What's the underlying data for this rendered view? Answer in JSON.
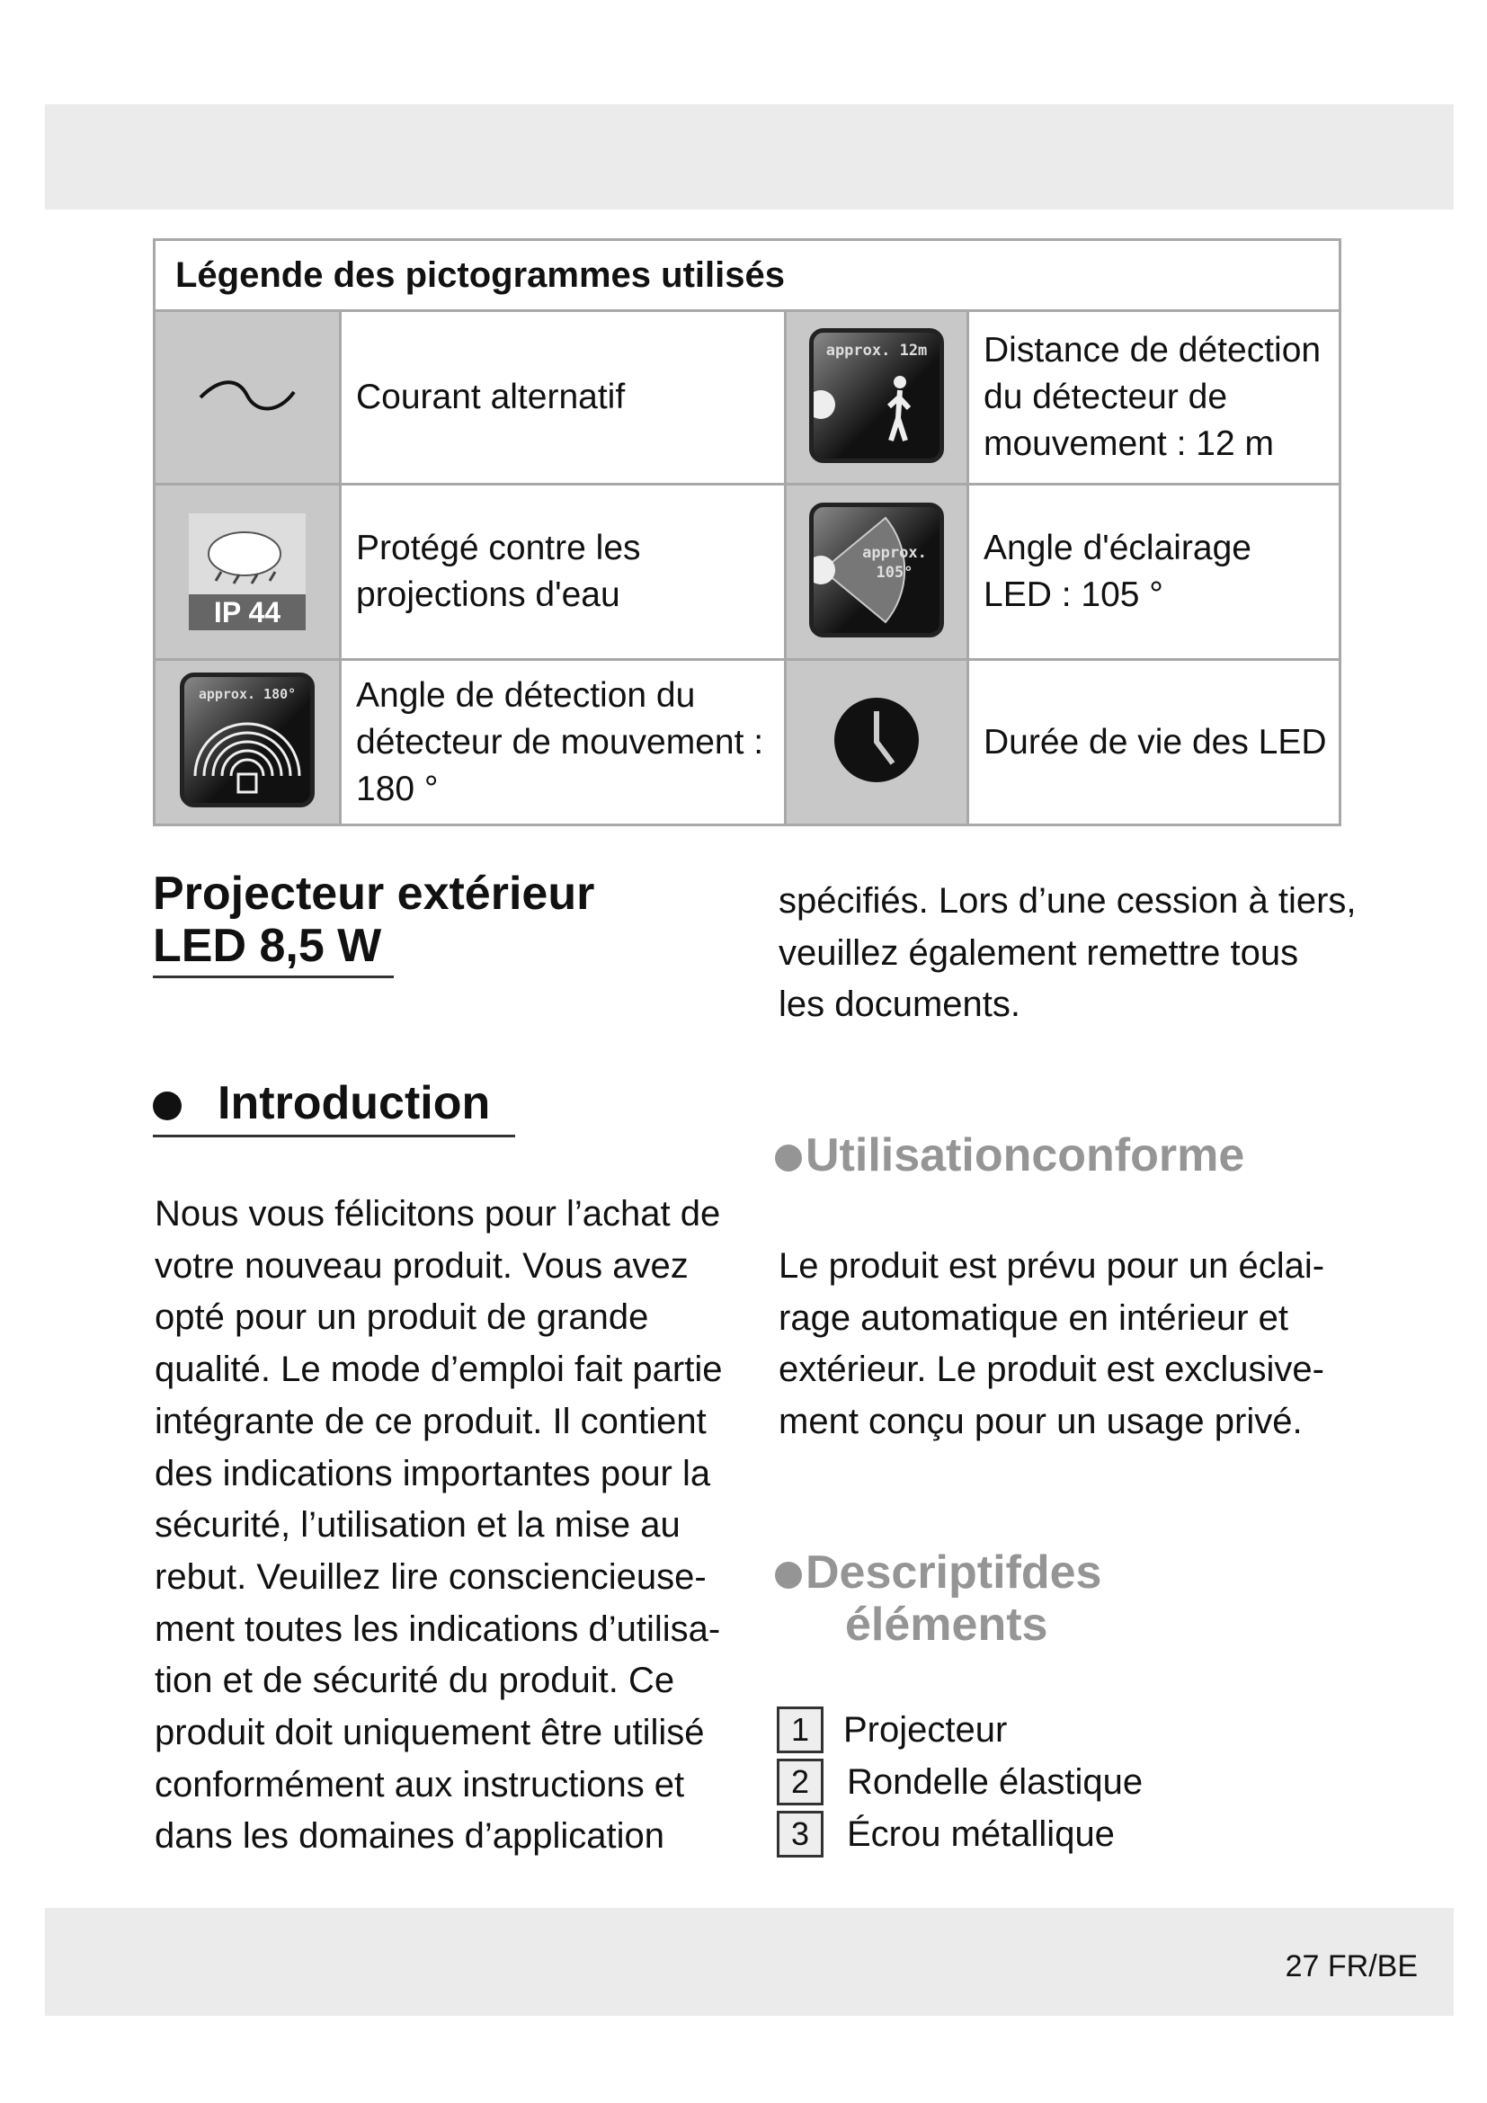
{
  "legend": {
    "title": "Légende des pictogrammes utilisés",
    "rows": [
      {
        "left_icon": "alternating-current-icon",
        "left_text": "Courant alternatif",
        "right_icon": "detection-distance-icon",
        "right_icon_label": "approx. 12m",
        "right_text": "Distance de détection\ndu détecteur de\nmouvement : 12 m"
      },
      {
        "left_icon": "ip44-splash-protection-icon",
        "left_icon_label": "IP 44",
        "left_text": "Protégé contre les\nprojections d'eau",
        "right_icon": "lighting-angle-icon",
        "right_icon_label": "approx.\n105°",
        "right_text": "Angle d'éclairage\nLED : 105 °"
      },
      {
        "left_icon": "detection-angle-icon",
        "left_icon_label": "approx. 180°",
        "left_text": "Angle de détection du\ndétecteur de mouvement :\n180 °",
        "right_icon": "clock-icon",
        "right_text": "Durée de vie des LED"
      }
    ]
  },
  "product_title": "Projecteur extérieur\nLED 8,5 W",
  "introduction": {
    "heading": "Introduction",
    "text": "Nous vous félicitons pour l’achat de\nvotre nouveau produit. Vous avez\nopté pour un produit de grande\nqualité. Le mode d’emploi fait partie\nintégrante de ce produit. Il contient\ndes indications importantes pour la\nsécurité, l’utilisation et la mise au\nrebut. Veuillez lire consciencieuse-\nment toutes les indications d’utilisa-\ntion et de sécurité du produit. Ce\nproduit doit uniquement être utilisé\nconformément aux instructions et\ndans les domaines d’application",
    "continued": "spécifiés. Lors d’une cession à tiers,\nveuillez également remettre tous\nles documents."
  },
  "intended_use": {
    "heading": "Utilisationconforme",
    "text": "Le produit est prévu pour un éclai-\nrage automatique en intérieur et\nextérieur. Le produit est exclusive-\nment conçu pour un usage privé."
  },
  "parts": {
    "heading_line1": "Descriptifdes",
    "heading_line2": "éléments",
    "items": [
      {
        "number": "1",
        "label": "Projecteur"
      },
      {
        "number": "2",
        "label": "Rondelle élastique"
      },
      {
        "number": "3",
        "label": "Écrou métallique"
      }
    ]
  },
  "footer": {
    "page": "27 FR/BE"
  },
  "colors": {
    "band": "#ebebeb",
    "icon_cell": "#c8c8c8",
    "gray_heading": "#959595"
  }
}
